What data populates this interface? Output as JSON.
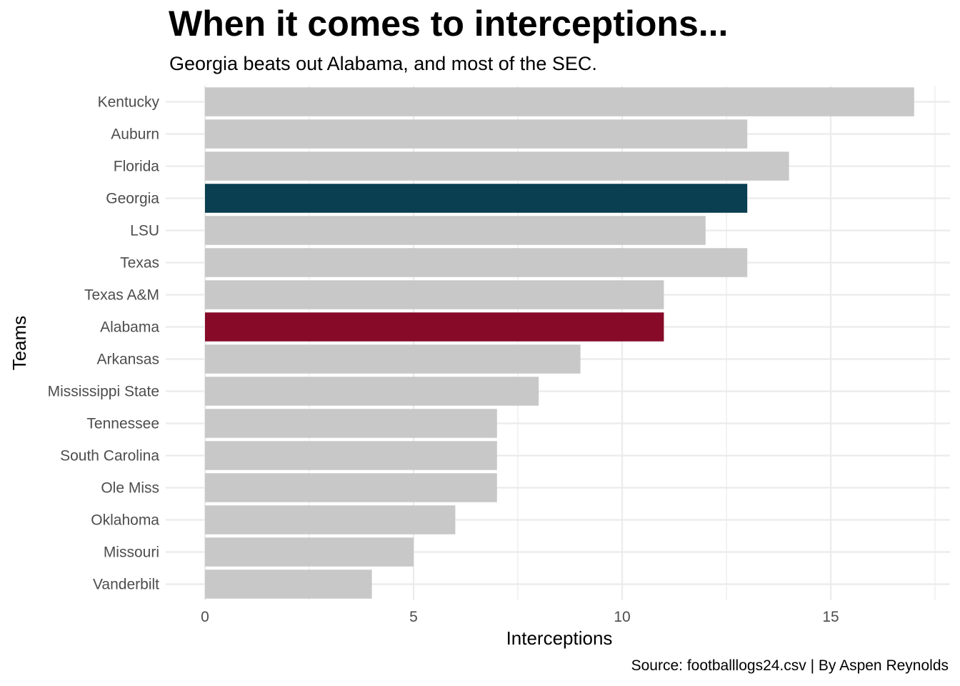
{
  "chart_data": {
    "type": "bar",
    "orientation": "horizontal",
    "title": "When it comes to interceptions...",
    "subtitle": "Georgia beats out Alabama, and most of the SEC.",
    "caption": "Source: footballlogs24.csv | By Aspen Reynolds",
    "xlabel": "Interceptions",
    "ylabel": "Teams",
    "xlim": [
      0,
      17.5
    ],
    "xticks": [
      0,
      5,
      10,
      15
    ],
    "grid": true,
    "categories": [
      "Kentucky",
      "Auburn",
      "Florida",
      "Georgia",
      "LSU",
      "Texas",
      "Texas A&M",
      "Alabama",
      "Arkansas",
      "Mississippi State",
      "Tennessee",
      "South Carolina",
      "Ole Miss",
      "Oklahoma",
      "Missouri",
      "Vanderbilt"
    ],
    "values": [
      17,
      13,
      14,
      13,
      12,
      13,
      11,
      11,
      9,
      8,
      7,
      7,
      7,
      6,
      5,
      4
    ],
    "colors": {
      "default": "#c8c8c8",
      "Georgia": "#093f50",
      "Alabama": "#870a28"
    }
  }
}
